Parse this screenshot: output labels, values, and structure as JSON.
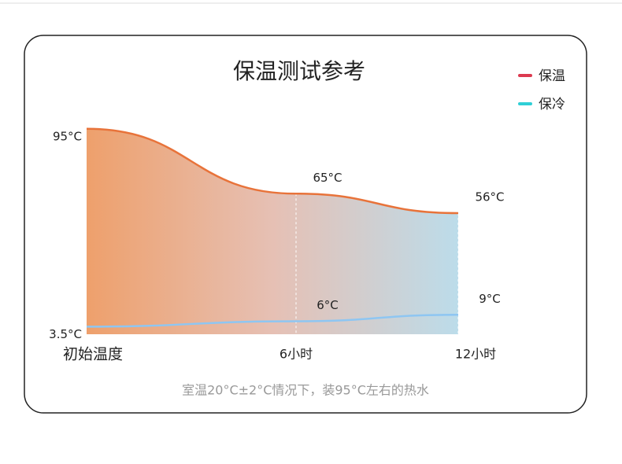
{
  "chart_data": {
    "type": "line",
    "title": "保温测试参考",
    "categories": [
      "初始温度",
      "6小时",
      "12小时"
    ],
    "series": [
      {
        "name": "保温",
        "color": "#dc3a50",
        "line_color": "#e8733a",
        "values": [
          95,
          65,
          56
        ],
        "value_labels": [
          "95°C",
          "65°C",
          "56°C"
        ]
      },
      {
        "name": "保冷",
        "color": "#2fcfd6",
        "line_color": "#8ec6f2",
        "values": [
          3.5,
          6,
          9
        ],
        "value_labels": [
          "3.5°C",
          "6°C",
          "9°C"
        ]
      }
    ],
    "ylim": [
      0,
      100
    ],
    "note": "室温20°C±2°C情况下，装95°C左右的热水"
  }
}
